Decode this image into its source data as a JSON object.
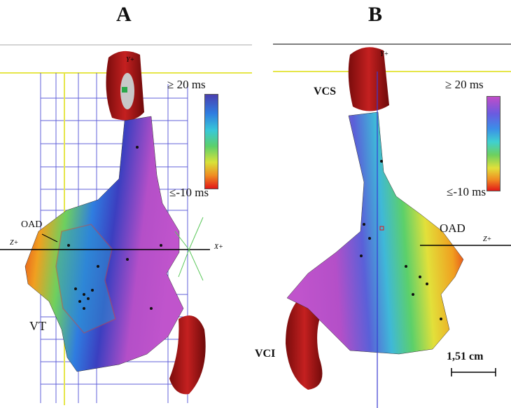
{
  "panels": [
    {
      "letter": "A",
      "scale_top": "≥ 20 ms",
      "scale_bottom": "≤-10 ms",
      "labels": {
        "oad": "OAD",
        "vt": "VT"
      },
      "axes": {
        "z": "Z+",
        "x": "X+",
        "y": "Y+"
      }
    },
    {
      "letter": "B",
      "scale_top": "≥ 20 ms",
      "scale_bottom": "≤-10 ms",
      "labels": {
        "vcs": "VCS",
        "oad": "OAD",
        "vci": "VCI"
      },
      "axes": {
        "z": "Z+",
        "y": "Y+"
      },
      "scale_bar_label": "1,51 cm"
    }
  ],
  "colors": {
    "vessel_red": "#a31515",
    "late_purple": "#b44fc8",
    "early_red": "#e21818",
    "grid_blue": "#3a3ad0",
    "guide_yellow": "#e6e64a"
  }
}
